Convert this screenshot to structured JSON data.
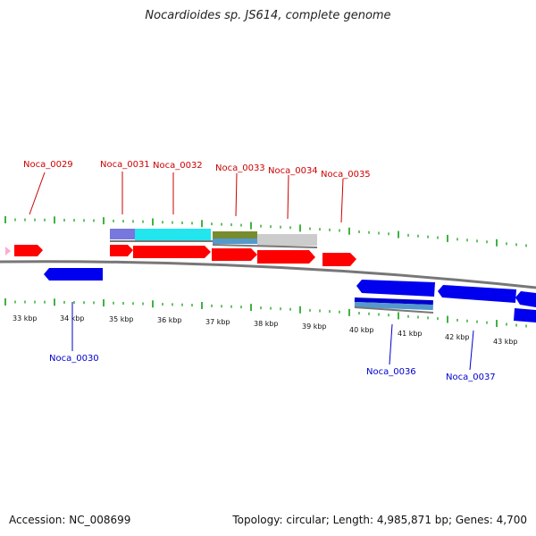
{
  "title": "Nocardioides sp. JS614, complete genome",
  "accession": "Accession: NC_008699",
  "topology": "Topology: circular; Length: 4,985,871 bp; Genes: 4,700",
  "colors": {
    "forward": "#ff0000",
    "reverse": "#0000ff",
    "label_forward": "#cc0000",
    "label_reverse": "#0000cc",
    "ticks": "#009900",
    "backbone": "#888888"
  },
  "kbp_labels": [
    "33 kbp",
    "34 kbp",
    "35 kbp",
    "36 kbp",
    "37 kbp",
    "38 kbp",
    "39 kbp",
    "40 kbp",
    "41 kbp",
    "42 kbp",
    "43 kbp"
  ],
  "genes_forward": [
    "Noca_0029",
    "Noca_0031",
    "Noca_0032",
    "Noca_0033",
    "Noca_0034",
    "Noca_0035"
  ],
  "genes_reverse": [
    "Noca_0030",
    "Noca_0036",
    "Noca_0037"
  ]
}
